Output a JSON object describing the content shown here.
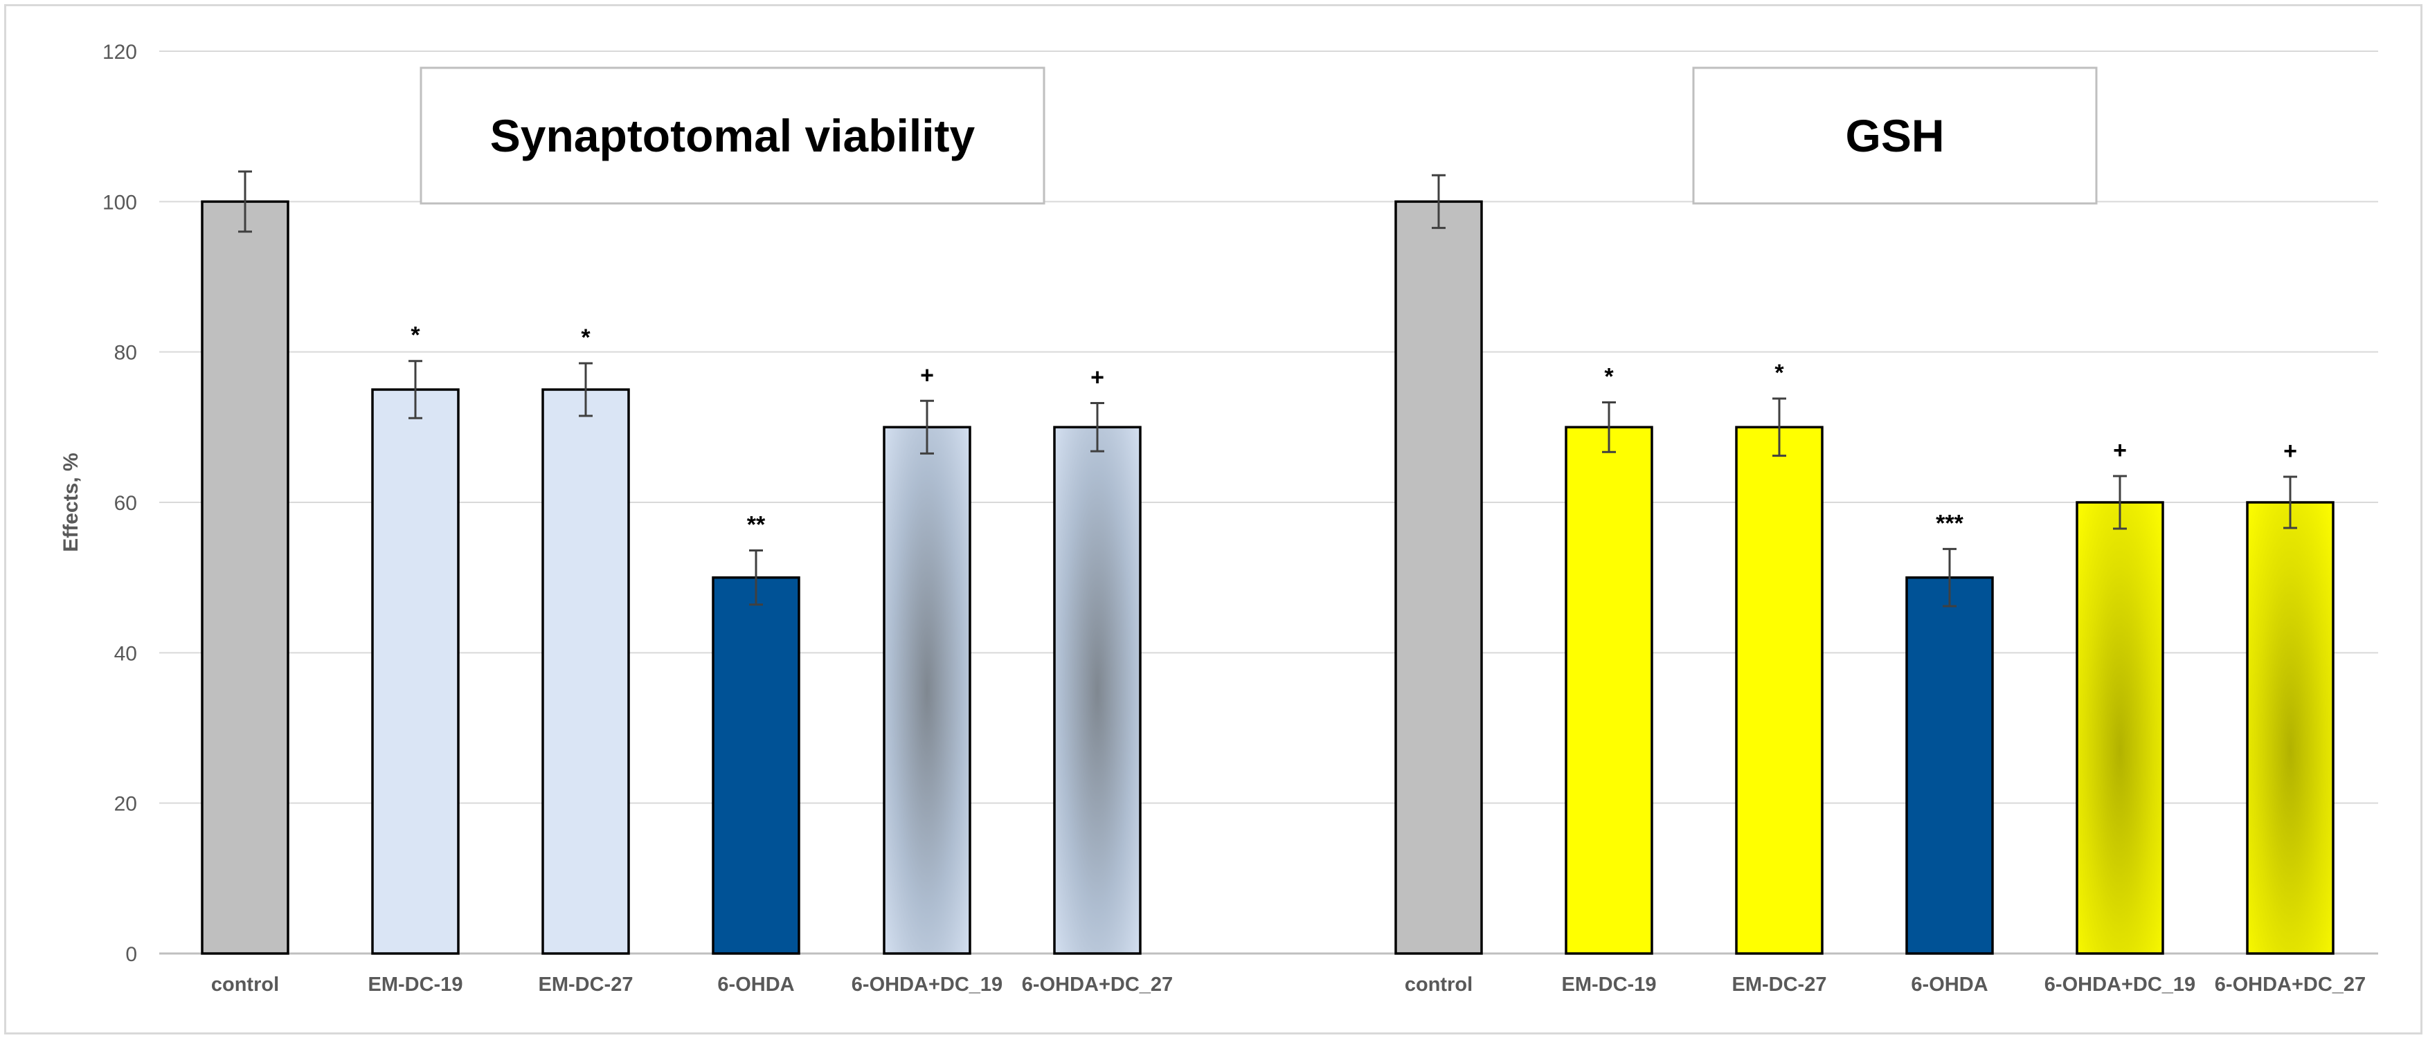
{
  "chart_data": {
    "type": "bar",
    "ylabel": "Effects, %",
    "ylim": [
      0,
      120
    ],
    "yticks": [
      0,
      20,
      40,
      60,
      80,
      100,
      120
    ],
    "grid": true,
    "legend": "none",
    "panels": [
      {
        "title": "Synaptotomal viability",
        "categories": [
          "control",
          "EM-DC-19",
          "EM-DC-27",
          "6-OHDA",
          "6-OHDA+DC_19",
          "6-OHDA+DC_27"
        ],
        "values": [
          100,
          75,
          75,
          50,
          70,
          70
        ],
        "errors": [
          4,
          3.8,
          3.5,
          3.6,
          3.5,
          3.2
        ],
        "significance": [
          "",
          "*",
          "*",
          "**",
          "+",
          "+"
        ],
        "fills": [
          "#bfbfbf",
          "#dae5f5",
          "#dae5f5",
          "#005296",
          "gradient-blue",
          "gradient-blue"
        ]
      },
      {
        "title": "GSH",
        "categories": [
          "control",
          "EM-DC-19",
          "EM-DC-27",
          "6-OHDA",
          "6-OHDA+DC_19",
          "6-OHDA+DC_27"
        ],
        "values": [
          100,
          70,
          70,
          50,
          60,
          60
        ],
        "errors": [
          3.5,
          3.3,
          3.8,
          3.8,
          3.5,
          3.4
        ],
        "significance": [
          "",
          "*",
          "*",
          "***",
          "+",
          "+"
        ],
        "fills": [
          "#bfbfbf",
          "#ffff00",
          "#ffff00",
          "#005296",
          "gradient-yellow",
          "gradient-yellow"
        ]
      }
    ]
  }
}
